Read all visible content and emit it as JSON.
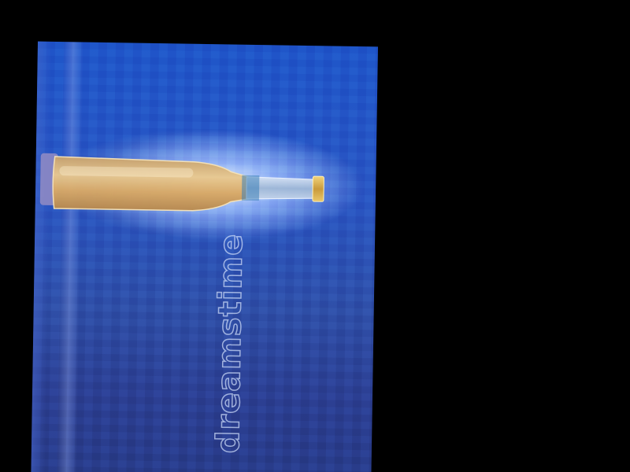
{
  "image": {
    "description_tag": "photo-of-glass-bottle",
    "background_color": "#000000",
    "photo_base_color": "#2a56c3",
    "glow_color": "#dbe8ff",
    "bottle_liquid_color": "#d9a96a"
  },
  "watermark": {
    "text": "dreamstime"
  }
}
